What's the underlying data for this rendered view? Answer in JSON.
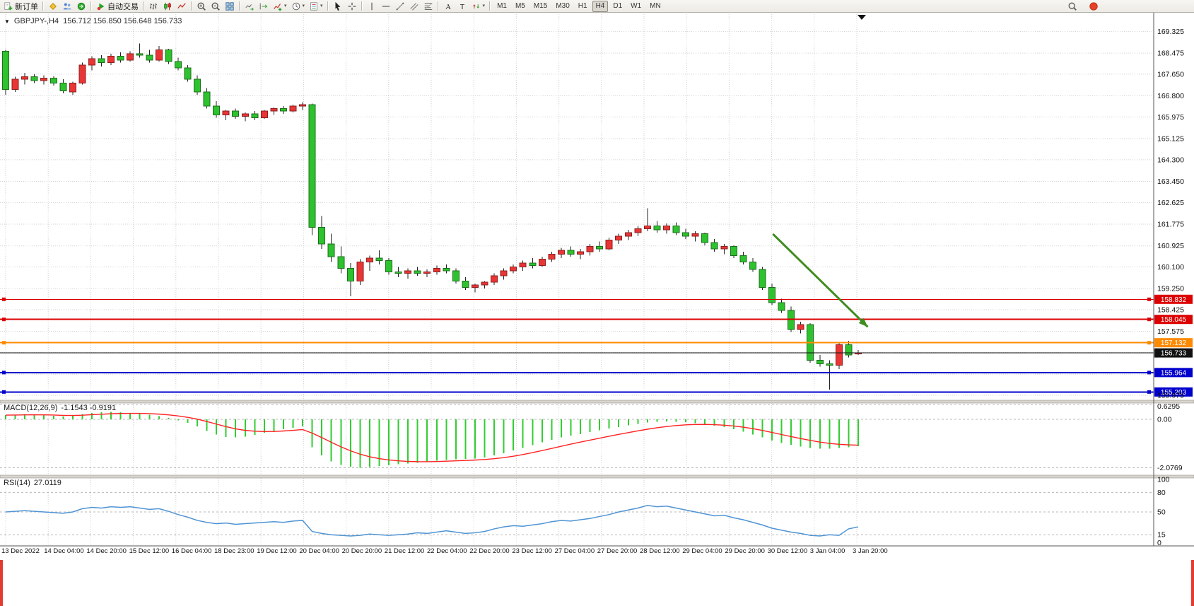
{
  "toolbar": {
    "groups": [
      {
        "items": [
          {
            "name": "new-order-button",
            "icon": "new-order",
            "label": "新订单"
          }
        ]
      },
      {
        "items": [
          {
            "name": "market-watch-button",
            "icon": "market-watch"
          },
          {
            "name": "accounts-button",
            "icon": "accounts"
          },
          {
            "name": "navigator-button",
            "icon": "navigator"
          }
        ]
      },
      {
        "items": [
          {
            "name": "auto-trading-button",
            "icon": "autotrade",
            "label": "自动交易"
          }
        ]
      },
      {
        "items": [
          {
            "name": "bar-chart-button",
            "icon": "bar-chart"
          },
          {
            "name": "candle-chart-button",
            "icon": "candle-chart"
          },
          {
            "name": "line-chart-button",
            "icon": "line-chart"
          }
        ]
      },
      {
        "items": [
          {
            "name": "zoom-in-button",
            "icon": "zoom-in"
          },
          {
            "name": "zoom-out-button",
            "icon": "zoom-out"
          },
          {
            "name": "tile-windows-button",
            "icon": "tile-windows"
          }
        ]
      },
      {
        "items": [
          {
            "name": "auto-scroll-button",
            "icon": "auto-scroll"
          },
          {
            "name": "shift-chart-button",
            "icon": "shift-chart"
          },
          {
            "name": "indicators-button",
            "icon": "indicators",
            "caret": true
          },
          {
            "name": "periods-button",
            "icon": "periods",
            "caret": true
          },
          {
            "name": "templates-button",
            "icon": "templates",
            "caret": true
          }
        ]
      },
      {
        "items": [
          {
            "name": "cursor-button",
            "icon": "cursor"
          },
          {
            "name": "crosshair-button",
            "icon": "crosshair"
          }
        ]
      },
      {
        "items": [
          {
            "name": "vertical-line-button",
            "icon": "vline"
          },
          {
            "name": "horizontal-line-button",
            "icon": "hline"
          },
          {
            "name": "trendline-button",
            "icon": "trendline"
          },
          {
            "name": "channel-button",
            "icon": "channel"
          },
          {
            "name": "fibonacci-button",
            "icon": "fibo"
          }
        ]
      },
      {
        "items": [
          {
            "name": "text-button",
            "icon": "text"
          },
          {
            "name": "label-button",
            "icon": "label"
          },
          {
            "name": "arrows-button",
            "icon": "arrows",
            "caret": true
          }
        ]
      }
    ],
    "timeframes": [
      "M1",
      "M5",
      "M15",
      "M30",
      "H1",
      "H4",
      "D1",
      "W1",
      "MN"
    ],
    "active_timeframe": "H4",
    "right_items": [
      {
        "name": "search-button",
        "icon": "search"
      },
      {
        "name": "notifications-button",
        "icon": "notification"
      }
    ]
  },
  "chart": {
    "symbol": "GBPJPY-,H4",
    "ohlc": "156.712 156.850 156.648 156.733",
    "macd_label": "MACD(12,26,9)",
    "macd_values": "-1.1543 -0.9191",
    "rsi_label": "RSI(14)",
    "rsi_value": "27.0119"
  },
  "chart_data": {
    "type": "candlestick",
    "symbol": "GBPJPY-",
    "timeframe": "H4",
    "current": {
      "open": 156.712,
      "high": 156.85,
      "low": 156.648,
      "close": 156.733
    },
    "price_axis": {
      "labels": [
        "169.325",
        "168.475",
        "167.650",
        "166.800",
        "165.975",
        "165.125",
        "164.300",
        "163.450",
        "162.625",
        "161.775",
        "160.925",
        "160.100",
        "159.250",
        "158.425",
        "157.575",
        "155.075"
      ],
      "hidden_gridlines": [
        156.75,
        155.9
      ],
      "top_price": 170.0,
      "bottom_price": 154.88
    },
    "time_labels": [
      "13 Dec 2022",
      "14 Dec 04:00",
      "14 Dec 20:00",
      "15 Dec 12:00",
      "16 Dec 04:00",
      "18 Dec 23:00",
      "19 Dec 12:00",
      "20 Dec 04:00",
      "20 Dec 20:00",
      "21 Dec 12:00",
      "22 Dec 04:00",
      "22 Dec 20:00",
      "23 Dec 12:00",
      "27 Dec 04:00",
      "27 Dec 20:00",
      "28 Dec 12:00",
      "29 Dec 04:00",
      "29 Dec 20:00",
      "30 Dec 12:00",
      "3 Jan 04:00",
      "3 Jan 20:00"
    ],
    "colors": {
      "bull": "#e83535",
      "bear": "#2ec22e",
      "bull_edge": "#8e1f1f",
      "bear_edge": "#1d6f1d",
      "wick": "#222222"
    },
    "candles": [
      [
        168.55,
        168.6,
        166.85,
        167.05
      ],
      [
        167.05,
        167.55,
        166.95,
        167.45
      ],
      [
        167.45,
        167.7,
        167.25,
        167.55
      ],
      [
        167.55,
        167.65,
        167.3,
        167.4
      ],
      [
        167.4,
        167.6,
        167.25,
        167.5
      ],
      [
        167.5,
        167.58,
        167.2,
        167.3
      ],
      [
        167.3,
        167.45,
        166.9,
        167.0
      ],
      [
        166.95,
        167.35,
        166.85,
        167.3
      ],
      [
        167.3,
        168.1,
        167.25,
        168.0
      ],
      [
        168.0,
        168.35,
        167.8,
        168.25
      ],
      [
        168.25,
        168.4,
        167.95,
        168.1
      ],
      [
        168.1,
        168.45,
        168.0,
        168.35
      ],
      [
        168.35,
        168.5,
        168.1,
        168.2
      ],
      [
        168.2,
        168.55,
        168.15,
        168.45
      ],
      [
        168.45,
        168.85,
        168.3,
        168.4
      ],
      [
        168.4,
        168.6,
        168.1,
        168.2
      ],
      [
        168.2,
        168.75,
        168.15,
        168.6
      ],
      [
        168.6,
        168.65,
        168.05,
        168.15
      ],
      [
        168.15,
        168.3,
        167.8,
        167.9
      ],
      [
        167.9,
        168.0,
        167.35,
        167.45
      ],
      [
        167.45,
        167.6,
        166.85,
        166.95
      ],
      [
        166.95,
        167.1,
        166.3,
        166.4
      ],
      [
        166.4,
        166.6,
        165.95,
        166.05
      ],
      [
        166.05,
        166.25,
        165.85,
        166.2
      ],
      [
        166.2,
        166.3,
        165.9,
        166.0
      ],
      [
        166.0,
        166.15,
        165.8,
        166.1
      ],
      [
        166.1,
        166.2,
        165.85,
        165.95
      ],
      [
        165.95,
        166.25,
        165.9,
        166.2
      ],
      [
        166.2,
        166.35,
        166.05,
        166.3
      ],
      [
        166.3,
        166.4,
        166.1,
        166.2
      ],
      [
        166.2,
        166.45,
        166.15,
        166.4
      ],
      [
        166.4,
        166.55,
        166.25,
        166.45
      ],
      [
        166.45,
        166.5,
        161.35,
        161.65
      ],
      [
        161.65,
        162.1,
        160.8,
        161.0
      ],
      [
        161.0,
        161.4,
        160.3,
        160.5
      ],
      [
        160.5,
        160.9,
        159.85,
        160.05
      ],
      [
        160.05,
        160.25,
        158.95,
        159.55
      ],
      [
        159.55,
        160.4,
        159.4,
        160.3
      ],
      [
        160.3,
        160.55,
        159.95,
        160.45
      ],
      [
        160.45,
        160.75,
        160.2,
        160.35
      ],
      [
        160.35,
        160.45,
        159.8,
        159.9
      ],
      [
        159.9,
        160.1,
        159.7,
        159.85
      ],
      [
        159.85,
        160.05,
        159.65,
        159.95
      ],
      [
        159.95,
        160.1,
        159.75,
        159.85
      ],
      [
        159.85,
        160.0,
        159.7,
        159.9
      ],
      [
        159.9,
        160.15,
        159.8,
        160.05
      ],
      [
        160.05,
        160.2,
        159.85,
        159.95
      ],
      [
        159.95,
        160.05,
        159.45,
        159.55
      ],
      [
        159.55,
        159.7,
        159.2,
        159.3
      ],
      [
        159.3,
        159.45,
        159.1,
        159.4
      ],
      [
        159.4,
        159.55,
        159.25,
        159.5
      ],
      [
        159.5,
        159.85,
        159.4,
        159.75
      ],
      [
        159.75,
        160.05,
        159.6,
        159.95
      ],
      [
        159.95,
        160.2,
        159.85,
        160.1
      ],
      [
        160.1,
        160.35,
        159.95,
        160.25
      ],
      [
        160.25,
        160.45,
        160.05,
        160.15
      ],
      [
        160.15,
        160.5,
        160.1,
        160.4
      ],
      [
        160.4,
        160.7,
        160.3,
        160.6
      ],
      [
        160.6,
        160.85,
        160.45,
        160.75
      ],
      [
        160.75,
        160.9,
        160.5,
        160.6
      ],
      [
        160.6,
        160.8,
        160.4,
        160.7
      ],
      [
        160.7,
        161.0,
        160.55,
        160.9
      ],
      [
        160.9,
        161.1,
        160.7,
        160.8
      ],
      [
        160.8,
        161.25,
        160.75,
        161.15
      ],
      [
        161.15,
        161.4,
        161.0,
        161.3
      ],
      [
        161.3,
        161.55,
        161.15,
        161.45
      ],
      [
        161.45,
        161.7,
        161.3,
        161.6
      ],
      [
        161.6,
        162.4,
        161.5,
        161.7
      ],
      [
        161.7,
        161.9,
        161.45,
        161.55
      ],
      [
        161.55,
        161.8,
        161.4,
        161.7
      ],
      [
        161.7,
        161.85,
        161.35,
        161.45
      ],
      [
        161.45,
        161.6,
        161.2,
        161.3
      ],
      [
        161.3,
        161.5,
        161.1,
        161.4
      ],
      [
        161.4,
        161.45,
        160.95,
        161.05
      ],
      [
        161.05,
        161.2,
        160.7,
        160.8
      ],
      [
        160.8,
        161.0,
        160.6,
        160.9
      ],
      [
        160.9,
        160.95,
        160.45,
        160.55
      ],
      [
        160.55,
        160.7,
        160.2,
        160.3
      ],
      [
        160.3,
        160.45,
        159.9,
        160.0
      ],
      [
        160.0,
        160.1,
        159.2,
        159.3
      ],
      [
        159.3,
        159.45,
        158.6,
        158.7
      ],
      [
        158.7,
        158.85,
        158.3,
        158.4
      ],
      [
        158.4,
        158.55,
        157.55,
        157.65
      ],
      [
        157.65,
        157.95,
        157.5,
        157.85
      ],
      [
        157.85,
        157.9,
        156.35,
        156.45
      ],
      [
        156.45,
        156.65,
        156.2,
        156.3
      ],
      [
        156.3,
        156.45,
        155.3,
        156.25
      ],
      [
        156.25,
        157.15,
        156.1,
        157.05
      ],
      [
        157.05,
        157.2,
        156.55,
        156.65
      ],
      [
        156.712,
        156.85,
        156.648,
        156.733
      ]
    ],
    "hlines": [
      {
        "price": 158.832,
        "label": "158.832",
        "color": "#dd0000",
        "width": 1
      },
      {
        "price": 158.045,
        "label": "158.045",
        "color": "#dd0000",
        "width": 2
      },
      {
        "price": 157.132,
        "label": "157.132",
        "color": "#ff8a00",
        "width": 2
      },
      {
        "price": 155.964,
        "label": "155.964",
        "color": "#0000cc",
        "width": 2
      },
      {
        "price": 155.203,
        "label": "155.203",
        "color": "#0000cc",
        "width": 2
      }
    ],
    "current_price_line": {
      "value": 156.733,
      "label": "156.733",
      "color": "#111111"
    },
    "trend_arrow": {
      "from_candle": 80.1,
      "from_price": 161.39,
      "to_candle": 90.0,
      "to_price": 157.75,
      "color": "#3f8c1f"
    },
    "macd": {
      "axis_labels": [
        "0.6295",
        "0.00",
        "-2.0769"
      ],
      "max": 0.6295,
      "min": -2.0769,
      "histogram_color": "#32cd32",
      "signal_color": "#ff2222",
      "histogram": [
        0.18,
        0.2,
        0.22,
        0.2,
        0.18,
        0.15,
        0.12,
        0.15,
        0.22,
        0.28,
        0.3,
        0.32,
        0.3,
        0.28,
        0.25,
        0.2,
        0.14,
        0.06,
        -0.04,
        -0.15,
        -0.3,
        -0.5,
        -0.65,
        -0.75,
        -0.78,
        -0.74,
        -0.66,
        -0.58,
        -0.5,
        -0.42,
        -0.36,
        -0.3,
        -1.2,
        -1.55,
        -1.8,
        -1.95,
        -2.03,
        -2.0769,
        -2.05,
        -2.0,
        -1.97,
        -1.93,
        -1.9,
        -1.86,
        -1.82,
        -1.78,
        -1.74,
        -1.71,
        -1.7,
        -1.68,
        -1.63,
        -1.55,
        -1.45,
        -1.34,
        -1.22,
        -1.1,
        -0.99,
        -0.88,
        -0.78,
        -0.7,
        -0.63,
        -0.55,
        -0.47,
        -0.4,
        -0.33,
        -0.26,
        -0.2,
        -0.14,
        -0.11,
        -0.09,
        -0.1,
        -0.12,
        -0.16,
        -0.21,
        -0.27,
        -0.34,
        -0.43,
        -0.53,
        -0.65,
        -0.78,
        -0.91,
        -1.01,
        -1.09,
        -1.16,
        -1.22,
        -1.26,
        -1.26,
        -1.23,
        -1.19,
        -1.1543
      ]
    },
    "rsi": {
      "levels": [
        80,
        50,
        15
      ],
      "axis_labels": [
        "100",
        "80",
        "50",
        "15",
        "0"
      ],
      "line_color": "#4f94d4",
      "values": [
        50,
        51,
        52,
        51,
        50,
        49,
        48,
        50,
        55,
        57,
        56,
        58,
        57,
        58,
        56,
        54,
        55,
        51,
        46,
        42,
        37,
        34,
        32,
        33,
        31,
        32,
        33,
        34,
        35,
        34,
        36,
        37,
        20,
        17,
        15,
        14,
        13,
        14,
        16,
        15,
        14,
        15,
        16,
        18,
        17,
        19,
        21,
        19,
        17,
        18,
        20,
        24,
        27,
        29,
        28,
        30,
        32,
        35,
        37,
        36,
        38,
        40,
        43,
        46,
        50,
        53,
        56,
        60,
        58,
        59,
        56,
        53,
        50,
        47,
        44,
        45,
        41,
        38,
        34,
        30,
        25,
        22,
        19,
        17,
        14,
        13,
        15,
        14,
        24,
        27.0119
      ]
    }
  }
}
